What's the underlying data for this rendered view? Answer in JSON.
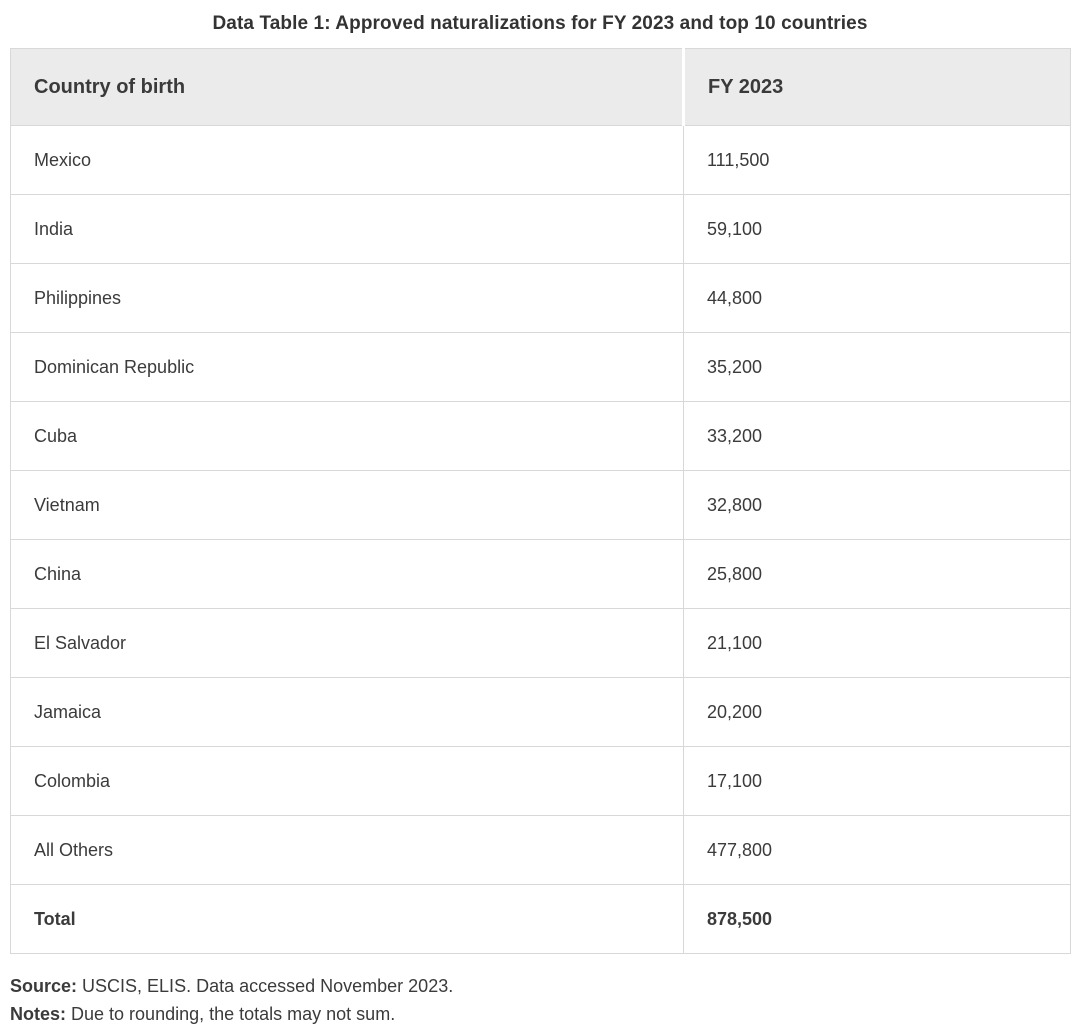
{
  "title": "Data Table 1: Approved naturalizations for FY 2023 and top 10 countries",
  "table": {
    "columns": {
      "country": "Country of birth",
      "value": "FY 2023"
    },
    "rows": [
      {
        "country": "Mexico",
        "value": "111,500",
        "is_total": false
      },
      {
        "country": "India",
        "value": "59,100",
        "is_total": false
      },
      {
        "country": "Philippines",
        "value": "44,800",
        "is_total": false
      },
      {
        "country": "Dominican Republic",
        "value": "35,200",
        "is_total": false
      },
      {
        "country": "Cuba",
        "value": "33,200",
        "is_total": false
      },
      {
        "country": "Vietnam",
        "value": "32,800",
        "is_total": false
      },
      {
        "country": "China",
        "value": "25,800",
        "is_total": false
      },
      {
        "country": "El Salvador",
        "value": "21,100",
        "is_total": false
      },
      {
        "country": "Jamaica",
        "value": "20,200",
        "is_total": false
      },
      {
        "country": "Colombia",
        "value": "17,100",
        "is_total": false
      },
      {
        "country": "All Others",
        "value": "477,800",
        "is_total": false
      },
      {
        "country": "Total",
        "value": "878,500",
        "is_total": true
      }
    ]
  },
  "footnotes": {
    "source_label": "Source:",
    "source_text": " USCIS, ELIS. Data accessed November 2023.",
    "notes_label": "Notes:",
    "notes_text": " Due to rounding, the totals may not sum."
  },
  "colors": {
    "header_background": "#ebebeb",
    "border": "#d8d8d8",
    "text": "#3b3b3b",
    "page_background": "#ffffff"
  },
  "chart_data": {
    "type": "table",
    "title": "Data Table 1: Approved naturalizations for FY 2023 and top 10 countries",
    "columns": [
      "Country of birth",
      "FY 2023"
    ],
    "rows": [
      [
        "Mexico",
        111500
      ],
      [
        "India",
        59100
      ],
      [
        "Philippines",
        44800
      ],
      [
        "Dominican Republic",
        35200
      ],
      [
        "Cuba",
        33200
      ],
      [
        "Vietnam",
        32800
      ],
      [
        "China",
        25800
      ],
      [
        "El Salvador",
        21100
      ],
      [
        "Jamaica",
        20200
      ],
      [
        "Colombia",
        17100
      ],
      [
        "All Others",
        477800
      ],
      [
        "Total",
        878500
      ]
    ],
    "source": "USCIS, ELIS. Data accessed November 2023.",
    "notes": "Due to rounding, the totals may not sum."
  }
}
